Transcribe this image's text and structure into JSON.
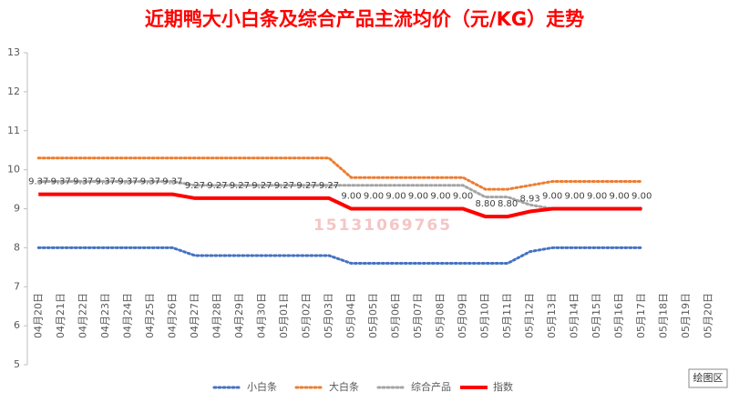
{
  "chart_data": {
    "type": "line",
    "title": "近期鸭大小白条及综合产品主流均价（元/KG）走势",
    "categories": [
      "04月20日",
      "04月21日",
      "04月22日",
      "04月23日",
      "04月24日",
      "04月25日",
      "04月26日",
      "04月27日",
      "04月28日",
      "04月29日",
      "04月30日",
      "05月01日",
      "05月02日",
      "05月03日",
      "05月04日",
      "05月05日",
      "05月06日",
      "05月07日",
      "05月08日",
      "05月09日",
      "05月10日",
      "05月11日",
      "05月12日",
      "05月13日",
      "05月14日",
      "05月15日",
      "05月16日",
      "05月17日",
      "05月18日",
      "05月19日",
      "05月20日"
    ],
    "series": [
      {
        "name": "小白条",
        "color": "#4472c4",
        "dash": true,
        "values": [
          8,
          8,
          8,
          8,
          8,
          8,
          8,
          7.8,
          7.8,
          7.8,
          7.8,
          7.8,
          7.8,
          7.8,
          7.6,
          7.6,
          7.6,
          7.6,
          7.6,
          7.6,
          7.6,
          7.6,
          7.9,
          8,
          8,
          8,
          8,
          8,
          null,
          null,
          null
        ]
      },
      {
        "name": "大白条",
        "color": "#ed7d31",
        "dash": true,
        "values": [
          10.3,
          10.3,
          10.3,
          10.3,
          10.3,
          10.3,
          10.3,
          10.3,
          10.3,
          10.3,
          10.3,
          10.3,
          10.3,
          10.3,
          9.8,
          9.8,
          9.8,
          9.8,
          9.8,
          9.8,
          9.5,
          9.5,
          9.6,
          9.7,
          9.7,
          9.7,
          9.7,
          9.7,
          null,
          null,
          null
        ]
      },
      {
        "name": "综合产品",
        "color": "#a5a5a5",
        "dash": true,
        "values": [
          9.7,
          9.7,
          9.7,
          9.7,
          9.7,
          9.7,
          9.7,
          9.6,
          9.6,
          9.6,
          9.6,
          9.6,
          9.6,
          9.6,
          9.6,
          9.6,
          9.6,
          9.6,
          9.6,
          9.6,
          9.3,
          9.3,
          9.1,
          9,
          9,
          9,
          9,
          9,
          null,
          null,
          null
        ]
      },
      {
        "name": "指数",
        "color": "#ff0000",
        "dash": false,
        "values": [
          9.37,
          9.37,
          9.37,
          9.37,
          9.37,
          9.37,
          9.37,
          9.27,
          9.27,
          9.27,
          9.27,
          9.27,
          9.27,
          9.27,
          9,
          9,
          9,
          9,
          9,
          9,
          8.8,
          8.8,
          8.93,
          9,
          9,
          9,
          9,
          9,
          null,
          null,
          null
        ],
        "value_labels": [
          "9.37",
          "9.37",
          "9.37",
          "9.37",
          "9.37",
          "9.37",
          "9.37",
          "9.27",
          "9.27",
          "9.27",
          "9.27",
          "9.27",
          "9.27",
          "9.27",
          "9.00",
          "9.00",
          "9.00",
          "9.00",
          "9.00",
          "9.00",
          "8.80",
          "8.80",
          "8.93",
          "9.00",
          "9.00",
          "9.00",
          "9.00",
          "9.00",
          null,
          null,
          null
        ]
      }
    ],
    "ylim": [
      5,
      13
    ],
    "yticks": [
      5,
      6,
      7,
      8,
      9,
      10,
      11,
      12,
      13
    ],
    "legend": "bottom",
    "watermark": "15131069765",
    "annotations": [
      "绘图区"
    ]
  }
}
